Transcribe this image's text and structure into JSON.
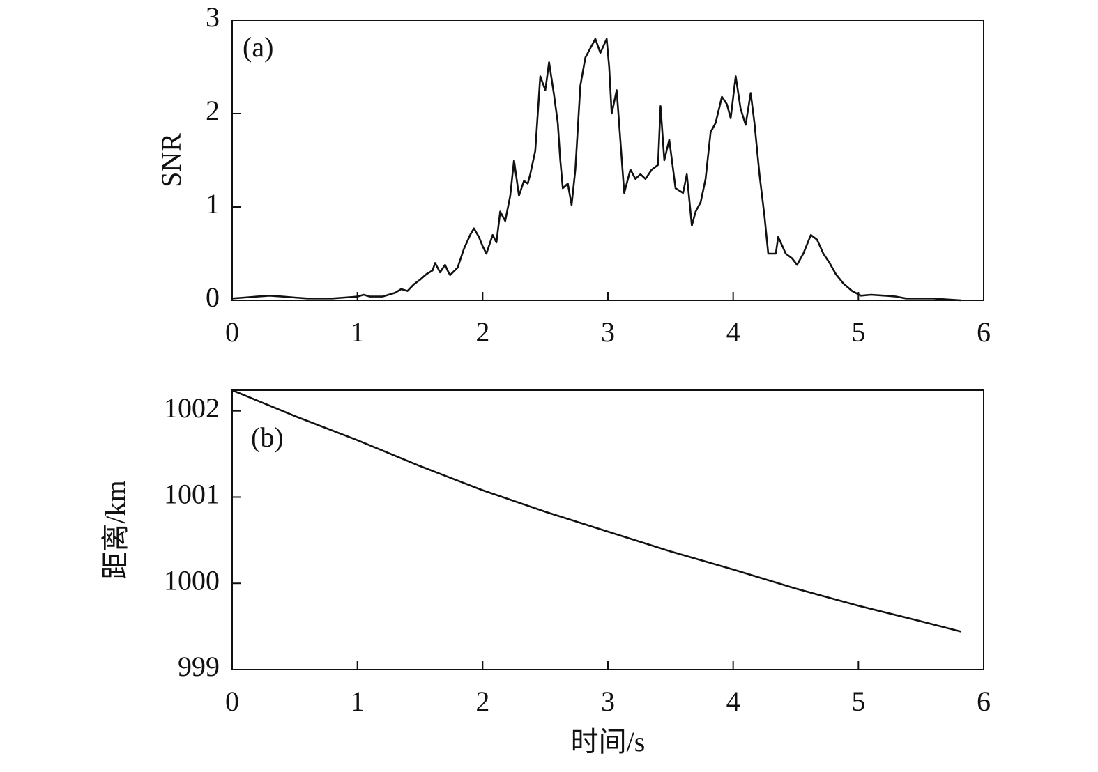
{
  "chart_data": [
    {
      "type": "line",
      "annotation": "(a)",
      "ylabel": "SNR",
      "color": "#111111",
      "xlim": [
        0,
        6
      ],
      "ylim": [
        0,
        3
      ],
      "xticks": [
        0,
        1,
        2,
        3,
        4,
        5,
        6
      ],
      "yticks": [
        0,
        1,
        2,
        3
      ],
      "x": [
        0,
        0.1,
        0.2,
        0.3,
        0.4,
        0.5,
        0.6,
        0.7,
        0.8,
        0.9,
        1.0,
        1.05,
        1.1,
        1.2,
        1.3,
        1.35,
        1.4,
        1.45,
        1.5,
        1.55,
        1.6,
        1.62,
        1.66,
        1.7,
        1.72,
        1.74,
        1.8,
        1.85,
        1.9,
        1.93,
        1.97,
        2.0,
        2.03,
        2.08,
        2.11,
        2.14,
        2.18,
        2.22,
        2.25,
        2.29,
        2.33,
        2.36,
        2.38,
        2.42,
        2.46,
        2.5,
        2.53,
        2.57,
        2.6,
        2.62,
        2.64,
        2.68,
        2.71,
        2.74,
        2.78,
        2.82,
        2.86,
        2.9,
        2.94,
        2.99,
        3.01,
        3.03,
        3.07,
        3.1,
        3.13,
        3.18,
        3.22,
        3.26,
        3.3,
        3.35,
        3.4,
        3.42,
        3.45,
        3.49,
        3.54,
        3.6,
        3.63,
        3.67,
        3.7,
        3.74,
        3.78,
        3.82,
        3.86,
        3.91,
        3.95,
        3.98,
        4.02,
        4.06,
        4.1,
        4.14,
        4.17,
        4.21,
        4.25,
        4.28,
        4.34,
        4.36,
        4.42,
        4.47,
        4.51,
        4.56,
        4.62,
        4.67,
        4.72,
        4.77,
        4.82,
        4.88,
        4.95,
        5.02,
        5.1,
        5.21,
        5.3,
        5.38,
        5.5,
        5.6,
        5.7,
        5.82
      ],
      "values": [
        0.02,
        0.03,
        0.04,
        0.05,
        0.04,
        0.03,
        0.02,
        0.02,
        0.02,
        0.03,
        0.04,
        0.06,
        0.04,
        0.04,
        0.08,
        0.12,
        0.1,
        0.17,
        0.22,
        0.28,
        0.32,
        0.4,
        0.3,
        0.38,
        0.32,
        0.27,
        0.35,
        0.55,
        0.7,
        0.77,
        0.68,
        0.58,
        0.5,
        0.7,
        0.62,
        0.95,
        0.85,
        1.12,
        1.5,
        1.12,
        1.28,
        1.25,
        1.35,
        1.6,
        2.4,
        2.25,
        2.55,
        2.2,
        1.9,
        1.5,
        1.2,
        1.25,
        1.02,
        1.4,
        2.3,
        2.6,
        2.7,
        2.8,
        2.65,
        2.8,
        2.5,
        2.0,
        2.25,
        1.7,
        1.15,
        1.4,
        1.3,
        1.35,
        1.3,
        1.4,
        1.45,
        2.08,
        1.5,
        1.72,
        1.2,
        1.15,
        1.35,
        0.8,
        0.95,
        1.05,
        1.3,
        1.8,
        1.9,
        2.18,
        2.1,
        1.95,
        2.4,
        2.05,
        1.88,
        2.22,
        1.9,
        1.35,
        0.9,
        0.5,
        0.5,
        0.68,
        0.5,
        0.45,
        0.38,
        0.5,
        0.7,
        0.65,
        0.5,
        0.4,
        0.28,
        0.18,
        0.1,
        0.05,
        0.06,
        0.05,
        0.04,
        0.02,
        0.02,
        0.02,
        0.01,
        0.0
      ]
    },
    {
      "type": "line",
      "annotation": "(b)",
      "ylabel": "距离/km",
      "xlabel": "时间/s",
      "color": "#111111",
      "xlim": [
        0,
        6
      ],
      "ylim": [
        999,
        1002.24
      ],
      "xticks": [
        0,
        1,
        2,
        3,
        4,
        5,
        6
      ],
      "yticks": [
        999,
        1000,
        1001,
        1002
      ],
      "x": [
        0,
        0.5,
        1,
        1.5,
        2,
        2.5,
        3,
        3.5,
        4,
        4.5,
        5,
        5.5,
        5.82
      ],
      "values": [
        1002.24,
        1001.94,
        1001.66,
        1001.36,
        1001.08,
        1000.83,
        1000.6,
        1000.37,
        1000.16,
        999.94,
        999.74,
        999.56,
        999.44
      ]
    }
  ]
}
